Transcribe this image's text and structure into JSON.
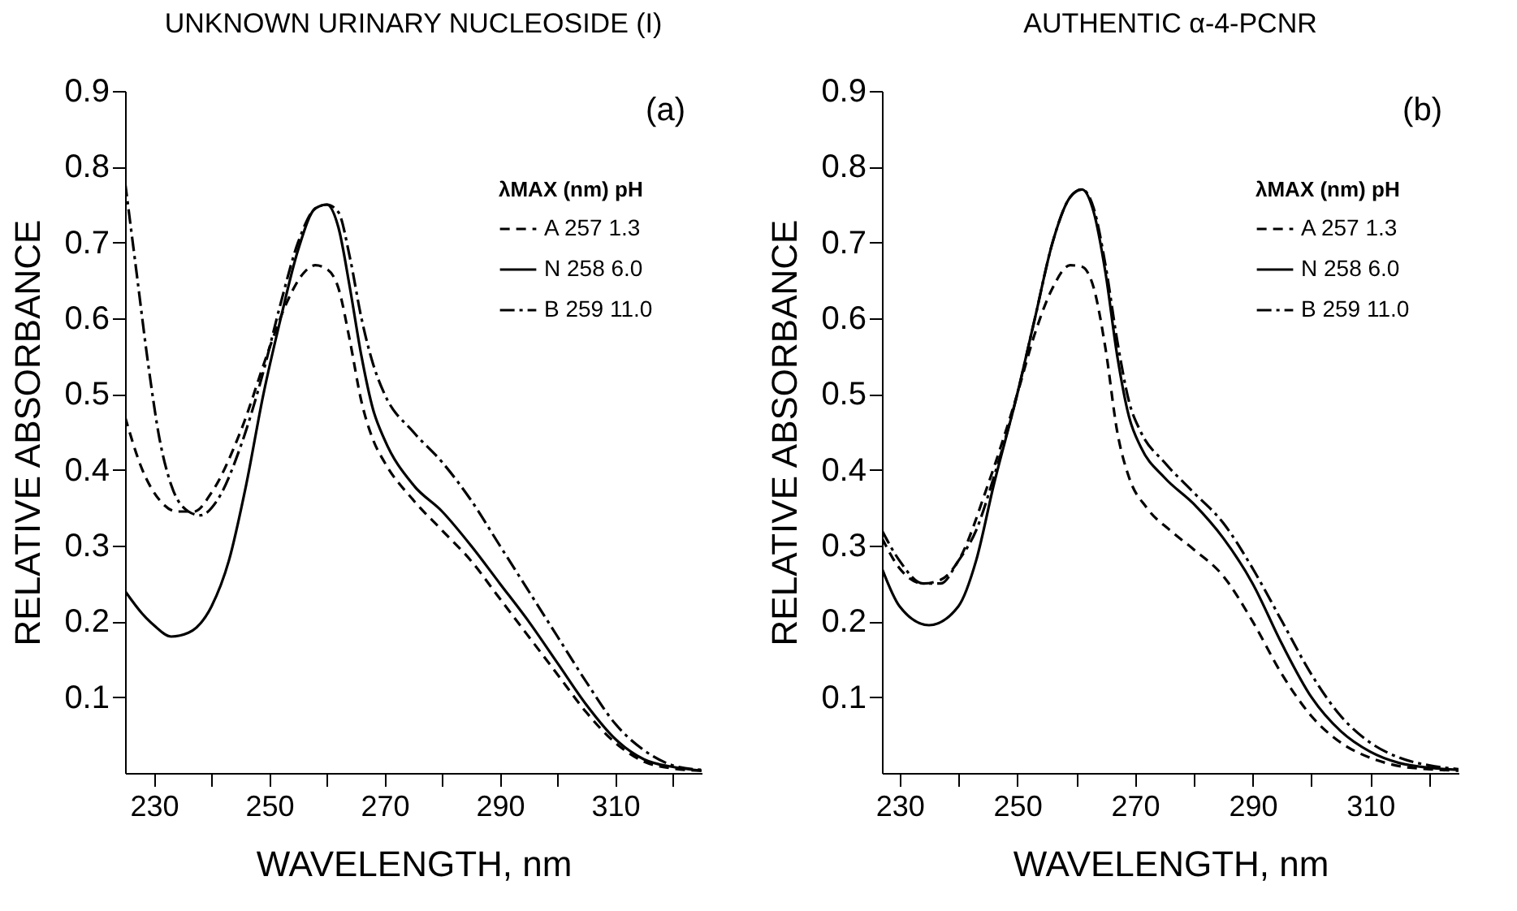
{
  "chart_data": [
    {
      "type": "line",
      "title": "UNKNOWN URINARY NUCLEOSIDE (I)",
      "xlabel": "WAVELENGTH, nm",
      "ylabel": "RELATIVE ABSORBANCE",
      "annotations": [
        "(a)"
      ],
      "legend": "top right",
      "legend_title": "λMAX (nm) pH",
      "grid": false,
      "xlim": [
        225,
        325
      ],
      "ylim": [
        0,
        0.9
      ],
      "xticks": [
        230,
        {
          "value": 240,
          "label": null
        },
        250,
        {
          "value": 260,
          "label": null
        },
        270,
        {
          "value": 280,
          "label": null
        },
        290,
        {
          "value": 300,
          "label": null
        },
        310,
        {
          "value": 320,
          "label": null
        }
      ],
      "yticks": [
        0.1,
        0.2,
        0.3,
        0.4,
        0.5,
        0.6,
        0.7,
        0.8,
        0.9
      ],
      "series": [
        {
          "name": "A 257 1.3",
          "color": "#000000",
          "line_style": "dashed",
          "x": [
            225,
            228,
            231,
            234,
            237,
            240,
            245,
            250,
            253,
            256,
            258,
            260,
            262,
            264,
            266,
            268,
            270,
            275,
            280,
            285,
            290,
            295,
            300,
            305,
            310,
            315,
            320,
            325
          ],
          "values": [
            0.47,
            0.4,
            0.36,
            0.345,
            0.345,
            0.37,
            0.45,
            0.56,
            0.62,
            0.66,
            0.67,
            0.665,
            0.64,
            0.57,
            0.49,
            0.44,
            0.41,
            0.36,
            0.32,
            0.28,
            0.23,
            0.18,
            0.13,
            0.08,
            0.04,
            0.015,
            0.006,
            0.003
          ]
        },
        {
          "name": "N 258 6.0",
          "color": "#000000",
          "line_style": "solid",
          "x": [
            225,
            228,
            230,
            233,
            236,
            240,
            243,
            246,
            249,
            252,
            255,
            258,
            260,
            262,
            264,
            266,
            268,
            270,
            275,
            280,
            285,
            290,
            295,
            300,
            305,
            310,
            315,
            320,
            325
          ],
          "values": [
            0.24,
            0.21,
            0.195,
            0.18,
            0.185,
            0.22,
            0.28,
            0.38,
            0.5,
            0.6,
            0.69,
            0.745,
            0.75,
            0.72,
            0.64,
            0.55,
            0.48,
            0.44,
            0.38,
            0.345,
            0.3,
            0.25,
            0.2,
            0.145,
            0.09,
            0.045,
            0.018,
            0.008,
            0.003
          ]
        },
        {
          "name": "B 259 11.0",
          "color": "#000000",
          "line_style": "dashdot",
          "x": [
            225,
            227,
            229,
            231,
            233,
            236,
            238,
            241,
            245,
            249,
            252,
            255,
            258,
            260,
            262,
            264,
            266,
            268,
            270,
            275,
            280,
            285,
            290,
            295,
            300,
            305,
            310,
            315,
            320,
            325
          ],
          "values": [
            0.78,
            0.66,
            0.54,
            0.44,
            0.38,
            0.345,
            0.34,
            0.36,
            0.43,
            0.53,
            0.62,
            0.7,
            0.745,
            0.75,
            0.74,
            0.68,
            0.6,
            0.54,
            0.5,
            0.45,
            0.41,
            0.36,
            0.3,
            0.24,
            0.18,
            0.12,
            0.065,
            0.03,
            0.01,
            0.004
          ]
        }
      ]
    },
    {
      "type": "line",
      "title": "AUTHENTIC α-4-PCNR",
      "xlabel": "WAVELENGTH, nm",
      "ylabel": "RELATIVE ABSORBANCE",
      "annotations": [
        "(b)"
      ],
      "legend": "top right",
      "legend_title": "λMAX (nm) pH",
      "grid": false,
      "xlim": [
        227,
        325
      ],
      "ylim": [
        0,
        0.9
      ],
      "xticks": [
        230,
        {
          "value": 240,
          "label": null
        },
        250,
        {
          "value": 260,
          "label": null
        },
        270,
        {
          "value": 280,
          "label": null
        },
        290,
        {
          "value": 300,
          "label": null
        },
        310,
        {
          "value": 320,
          "label": null
        }
      ],
      "yticks": [
        0.1,
        0.2,
        0.3,
        0.4,
        0.5,
        0.6,
        0.7,
        0.8,
        0.9
      ],
      "series": [
        {
          "name": "A 257 1.3",
          "color": "#000000",
          "line_style": "dashed",
          "x": [
            227,
            230,
            234,
            237,
            240,
            245,
            250,
            253,
            256,
            259,
            261,
            263,
            265,
            267,
            269,
            272,
            276,
            280,
            285,
            290,
            295,
            300,
            305,
            310,
            315,
            320,
            325
          ],
          "values": [
            0.31,
            0.27,
            0.25,
            0.255,
            0.28,
            0.38,
            0.5,
            0.58,
            0.64,
            0.67,
            0.668,
            0.64,
            0.56,
            0.45,
            0.39,
            0.35,
            0.32,
            0.295,
            0.26,
            0.2,
            0.13,
            0.075,
            0.04,
            0.02,
            0.009,
            0.005,
            0.003
          ]
        },
        {
          "name": "N 258 6.0",
          "color": "#000000",
          "line_style": "solid",
          "x": [
            227,
            230,
            235,
            240,
            243,
            246,
            250,
            253,
            256,
            259,
            261,
            263,
            265,
            267,
            269,
            271,
            275,
            280,
            285,
            290,
            295,
            300,
            305,
            310,
            315,
            320,
            325
          ],
          "values": [
            0.27,
            0.22,
            0.195,
            0.22,
            0.28,
            0.38,
            0.5,
            0.6,
            0.7,
            0.76,
            0.77,
            0.74,
            0.66,
            0.55,
            0.47,
            0.43,
            0.39,
            0.355,
            0.31,
            0.25,
            0.17,
            0.1,
            0.055,
            0.028,
            0.013,
            0.007,
            0.004
          ]
        },
        {
          "name": "B 259 11.0",
          "color": "#000000",
          "line_style": "dashdot",
          "x": [
            227,
            230,
            234,
            237,
            240,
            243,
            246,
            250,
            253,
            256,
            259,
            261,
            263,
            265,
            267,
            269,
            271,
            275,
            280,
            285,
            290,
            295,
            300,
            305,
            310,
            315,
            320,
            325
          ],
          "values": [
            0.32,
            0.28,
            0.25,
            0.25,
            0.28,
            0.32,
            0.39,
            0.5,
            0.6,
            0.7,
            0.76,
            0.77,
            0.745,
            0.67,
            0.57,
            0.49,
            0.45,
            0.41,
            0.37,
            0.33,
            0.27,
            0.2,
            0.13,
            0.075,
            0.04,
            0.02,
            0.01,
            0.005
          ]
        }
      ]
    }
  ]
}
